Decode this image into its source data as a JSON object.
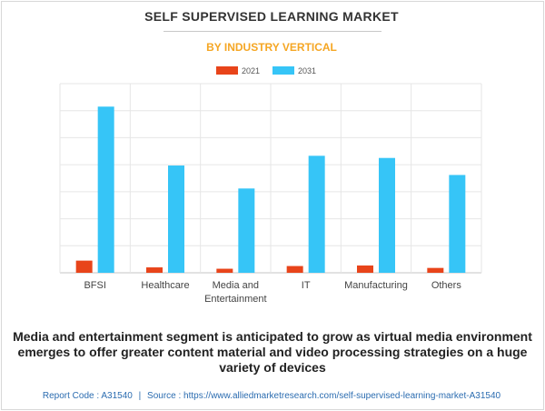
{
  "header": {
    "title": "SELF SUPERVISED LEARNING MARKET",
    "subtitle": "BY INDUSTRY VERTICAL"
  },
  "caption": "Media and entertainment segment is anticipated to grow as virtual media environment emerges to offer greater content material and video processing strategies on a huge variety of devices",
  "footer": {
    "report_code": "Report Code : A31540",
    "separator": "|",
    "source": "Source : https://www.alliedmarketresearch.com/self-supervised-learning-market-A31540"
  },
  "chart_data": {
    "type": "bar",
    "categories": [
      "BFSI",
      "Healthcare",
      "Media and Entertainment",
      "IT",
      "Manufacturing",
      "Others"
    ],
    "category_lines": [
      [
        "BFSI"
      ],
      [
        "Healthcare"
      ],
      [
        "Media and",
        "Entertainment"
      ],
      [
        "IT"
      ],
      [
        "Manufacturing"
      ],
      [
        "Others"
      ]
    ],
    "series": [
      {
        "name": "2021",
        "color": "#e8441a",
        "values": [
          4.5,
          2.0,
          1.5,
          2.5,
          2.7,
          1.8
        ]
      },
      {
        "name": "2031",
        "color": "#36c5f7",
        "values": [
          61.5,
          39.7,
          31.2,
          43.3,
          42.5,
          36.2
        ]
      }
    ],
    "ylim": [
      0,
      70
    ],
    "ytick_step": 10,
    "show_ytick_labels": false,
    "grid": true,
    "legend": "top-center",
    "xlabel": "",
    "ylabel": ""
  }
}
